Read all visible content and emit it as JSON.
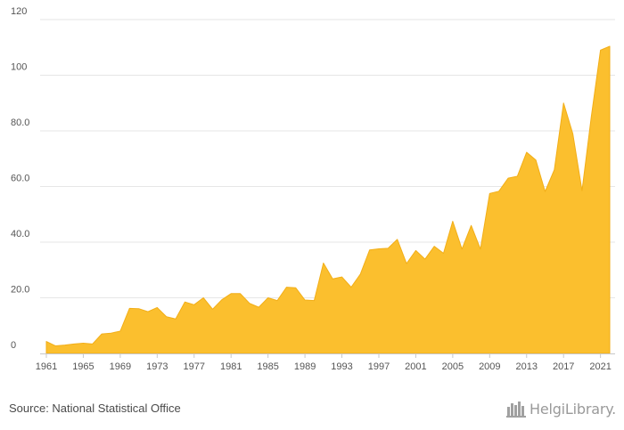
{
  "colors": {
    "area_fill": "#fbbf2e",
    "area_stroke": "#f2ae17",
    "grid": "#e6e6e6",
    "axis": "#c8c8c8",
    "tick_text": "#555555",
    "logo": "#a0a0a0"
  },
  "source_text": "Source: National Statistical Office",
  "logo_text": "HelgiLibrary.",
  "logo_icon": "helgi-buildings-icon",
  "chart_data": {
    "type": "area",
    "title": "",
    "xlabel": "",
    "ylabel": "",
    "grid": true,
    "xlim": [
      1961,
      2022
    ],
    "ylim": [
      0,
      120
    ],
    "y_ticks": [
      {
        "value": 0,
        "label": "0"
      },
      {
        "value": 20,
        "label": "20.0"
      },
      {
        "value": 40,
        "label": "40.0"
      },
      {
        "value": 60,
        "label": "60.0"
      },
      {
        "value": 80,
        "label": "80.0"
      },
      {
        "value": 100,
        "label": "100"
      },
      {
        "value": 120,
        "label": "120"
      }
    ],
    "x_ticks": [
      {
        "value": 1961,
        "label": "1961"
      },
      {
        "value": 1965,
        "label": "1965"
      },
      {
        "value": 1969,
        "label": "1969"
      },
      {
        "value": 1973,
        "label": "1973"
      },
      {
        "value": 1977,
        "label": "1977"
      },
      {
        "value": 1981,
        "label": "1981"
      },
      {
        "value": 1985,
        "label": "1985"
      },
      {
        "value": 1989,
        "label": "1989"
      },
      {
        "value": 1993,
        "label": "1993"
      },
      {
        "value": 1997,
        "label": "1997"
      },
      {
        "value": 2001,
        "label": "2001"
      },
      {
        "value": 2005,
        "label": "2005"
      },
      {
        "value": 2009,
        "label": "2009"
      },
      {
        "value": 2013,
        "label": "2013"
      },
      {
        "value": 2017,
        "label": "2017"
      },
      {
        "value": 2021,
        "label": "2021"
      }
    ],
    "series": [
      {
        "x": [
          1961,
          1962,
          1963,
          1964,
          1965,
          1966,
          1967,
          1968,
          1969,
          1970,
          1971,
          1972,
          1973,
          1974,
          1975,
          1976,
          1977,
          1978,
          1979,
          1980,
          1981,
          1982,
          1983,
          1984,
          1985,
          1986,
          1987,
          1988,
          1989,
          1990,
          1991,
          1992,
          1993,
          1994,
          1995,
          1996,
          1997,
          1998,
          1999,
          2000,
          2001,
          2002,
          2003,
          2004,
          2005,
          2006,
          2007,
          2008,
          2009,
          2010,
          2011,
          2012,
          2013,
          2014,
          2015,
          2016,
          2017,
          2018,
          2019,
          2020,
          2021,
          2022
        ],
        "values": [
          4.3,
          2.7,
          3.0,
          3.4,
          3.7,
          3.4,
          7.0,
          7.3,
          8.0,
          16.2,
          16.1,
          15.0,
          16.5,
          13.2,
          12.4,
          18.5,
          17.5,
          20.0,
          15.9,
          19.3,
          21.5,
          21.5,
          18.0,
          16.6,
          20.0,
          19.0,
          23.8,
          23.6,
          19.2,
          19.0,
          32.5,
          26.8,
          27.5,
          23.8,
          28.5,
          37.2,
          37.6,
          37.8,
          41.0,
          32.3,
          37.0,
          33.9,
          38.5,
          36.0,
          47.5,
          37.5,
          46.0,
          37.5,
          57.5,
          58.3,
          63.0,
          63.7,
          72.3,
          69.5,
          58.2,
          66.0,
          90.0,
          79.0,
          58.5,
          85.0,
          109.0,
          110.4
        ]
      }
    ]
  }
}
